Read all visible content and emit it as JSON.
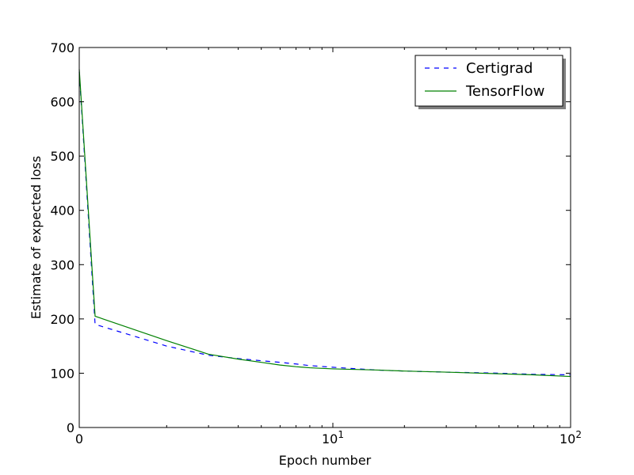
{
  "chart_data": {
    "type": "line",
    "xlabel": "Epoch number",
    "ylabel": "Estimate of expected loss",
    "xscale": "symlog",
    "xlim": [
      0,
      100
    ],
    "ylim": [
      0,
      700
    ],
    "x_ticks": [
      {
        "value": 0,
        "base": "0",
        "exp": ""
      },
      {
        "value": 10,
        "base": "10",
        "exp": "1"
      },
      {
        "value": 100,
        "base": "10",
        "exp": "2"
      }
    ],
    "y_ticks": [
      0,
      100,
      200,
      300,
      400,
      500,
      600,
      700
    ],
    "grid": false,
    "legend": {
      "position": "top-right"
    },
    "series": [
      {
        "name": "Certigrad",
        "color": "#0000ff",
        "style": "dashed",
        "x": [
          0,
          1,
          2,
          3,
          4,
          5,
          6,
          7,
          8,
          10,
          15,
          20,
          30,
          50,
          70,
          100
        ],
        "y": [
          655,
          190,
          150,
          133,
          127,
          123,
          120,
          117,
          114,
          111,
          106,
          104,
          102,
          100,
          98,
          97
        ]
      },
      {
        "name": "TensorFlow",
        "color": "#008000",
        "style": "solid",
        "x": [
          0,
          1,
          2,
          3,
          4,
          5,
          6,
          7,
          8,
          10,
          15,
          20,
          30,
          50,
          70,
          100
        ],
        "y": [
          660,
          205,
          160,
          135,
          126,
          120,
          115,
          112,
          110,
          108,
          106,
          104,
          102,
          99,
          97,
          94
        ]
      }
    ]
  }
}
